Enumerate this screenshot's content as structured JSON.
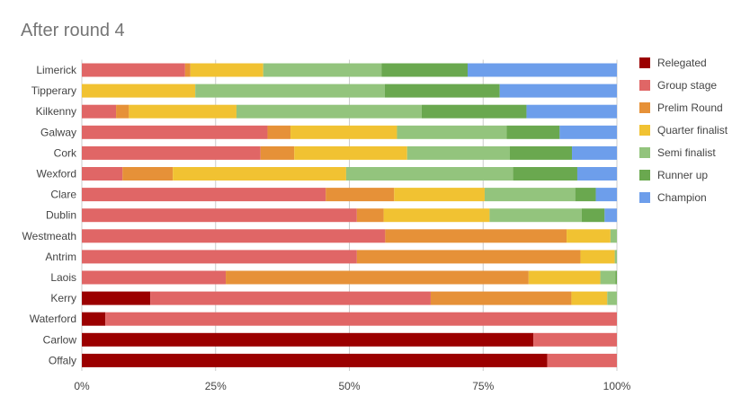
{
  "chart_data": {
    "type": "bar",
    "orientation": "horizontal",
    "stacked": "percent",
    "title": "After round 4",
    "categories": [
      "Limerick",
      "Tipperary",
      "Kilkenny",
      "Galway",
      "Cork",
      "Wexford",
      "Clare",
      "Dublin",
      "Westmeath",
      "Antrim",
      "Laois",
      "Kerry",
      "Waterford",
      "Carlow",
      "Offaly"
    ],
    "xticks": [
      "0%",
      "25%",
      "50%",
      "75%",
      "100%"
    ],
    "xlim": [
      0,
      100
    ],
    "legend_position": "right",
    "grid": true,
    "series": [
      {
        "name": "Relegated",
        "color": "#9b0000",
        "values": [
          0,
          0,
          0,
          0,
          0,
          0,
          0,
          0,
          0,
          0,
          0,
          12.8,
          4.4,
          84.4,
          87.0
        ]
      },
      {
        "name": "Group stage",
        "color": "#e06666",
        "values": [
          19.3,
          0,
          6.4,
          34.7,
          33.4,
          7.6,
          47.4,
          51.4,
          56.7,
          51.3,
          26.9,
          52.4,
          95.6,
          15.6,
          13.0
        ]
      },
      {
        "name": "Prelim Round",
        "color": "#e69138",
        "values": [
          1.0,
          0,
          2.4,
          4.3,
          6.3,
          9.4,
          13.3,
          5.0,
          33.9,
          41.7,
          56.6,
          26.3,
          0,
          0,
          0
        ]
      },
      {
        "name": "Quarter finalist",
        "color": "#f1c232",
        "values": [
          13.6,
          21.2,
          20.1,
          19.9,
          21.1,
          32.4,
          17.6,
          19.8,
          8.2,
          6.4,
          13.4,
          6.7,
          0,
          0,
          0
        ]
      },
      {
        "name": "Semi finalist",
        "color": "#93c47d",
        "values": [
          22.1,
          35.4,
          34.6,
          20.5,
          19.2,
          31.2,
          17.6,
          17.2,
          1.2,
          0.4,
          2.8,
          1.8,
          0,
          0,
          0
        ]
      },
      {
        "name": "Runner up",
        "color": "#6aa84f",
        "values": [
          16.1,
          21.5,
          19.6,
          9.9,
          11.6,
          12.0,
          4.0,
          4.3,
          0,
          0,
          0.3,
          0,
          0,
          0,
          0
        ]
      },
      {
        "name": "Champion",
        "color": "#6d9eeb",
        "values": [
          27.9,
          21.9,
          16.9,
          10.7,
          8.4,
          7.4,
          4.1,
          2.3,
          0,
          0,
          0,
          0,
          0,
          0,
          0
        ]
      }
    ]
  }
}
